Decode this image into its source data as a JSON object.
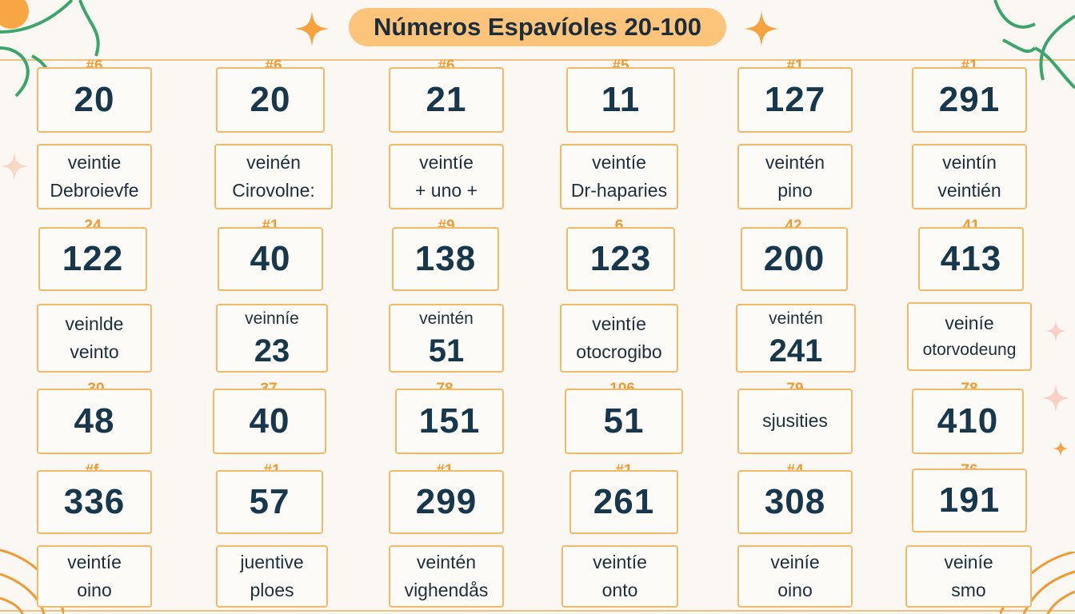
{
  "title": "Números Espavíoles 20-100",
  "colors": {
    "accent": "#f19a31",
    "pill": "#fbc47a",
    "tile_border": "#f2b968",
    "number": "#17374d",
    "leaf": "#3aa66a"
  },
  "icons": {
    "sparkle": "sparkle-icon",
    "leaf": "leaf-decoration-icon",
    "orange": "orange-slice-icon"
  },
  "rows": [
    {
      "cards": [
        {
          "tag": "#6",
          "number": "20",
          "word1": "veintie",
          "word2": "Debroievfe"
        },
        {
          "tag": "#6",
          "number": "20",
          "word1": "veinén",
          "word2": "Cirovolne:"
        },
        {
          "tag": "#6",
          "number": "21",
          "word1": "veintíe",
          "word2": "+ uno +"
        },
        {
          "tag": "#5",
          "number": "11",
          "word1": "veintíe",
          "word2": "Dr-haparies"
        },
        {
          "tag": "#1",
          "number": "127",
          "word1": "veintén",
          "word2": "pino"
        },
        {
          "tag": "#1",
          "number": "291",
          "word1": "veintín",
          "word2": "veintién"
        }
      ]
    },
    {
      "cards": [
        {
          "tag": "24",
          "number": "122",
          "word1": "veinlde",
          "word2": "veinto"
        },
        {
          "tag": "#1",
          "number": "40",
          "word1": "veinníe",
          "word2": "23"
        },
        {
          "tag": "#9",
          "number": "138",
          "word1": "veintén",
          "word2": "51"
        },
        {
          "tag": "6",
          "number": "123",
          "word1": "veintíe",
          "word2": "otocrogibo"
        },
        {
          "tag": "42",
          "number": "200",
          "word1": "veintén",
          "word2": "241"
        },
        {
          "tag": "41",
          "number": "413",
          "word1": "veiníe",
          "word2": "otorvodeung"
        }
      ]
    },
    {
      "cards": [
        {
          "tag": "30",
          "number": "48"
        },
        {
          "tag": "37",
          "number": "40"
        },
        {
          "tag": "78",
          "number": "151"
        },
        {
          "tag": "106",
          "number": "51"
        },
        {
          "tag": "79",
          "text": "sjusities"
        },
        {
          "tag": "78",
          "number": "410"
        }
      ]
    },
    {
      "cards": [
        {
          "tag": "#f-",
          "number": "336",
          "word1": "veintíe",
          "word2": "oino"
        },
        {
          "tag": "#1",
          "number": "57",
          "word1": "juentive",
          "word2": "ploes"
        },
        {
          "tag": "#1",
          "number": "299",
          "word1": "veintén",
          "word2": "vighendås"
        },
        {
          "tag": "#1",
          "number": "261",
          "word1": "veintíe",
          "word2": "onto"
        },
        {
          "tag": "#4",
          "number": "308",
          "word1": "veiníe",
          "word2": "oino"
        },
        {
          "tag": "76",
          "number": "191",
          "word1": "veiníe",
          "word2": "smo"
        }
      ]
    }
  ]
}
